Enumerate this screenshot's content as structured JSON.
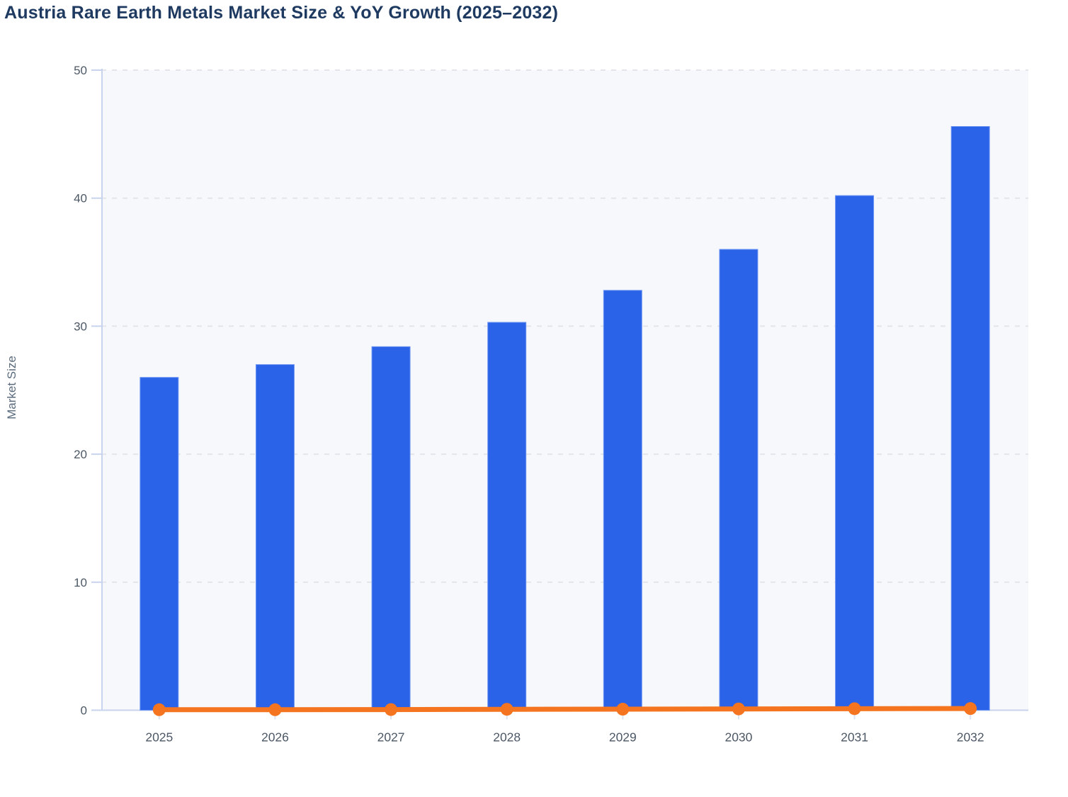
{
  "header": {
    "title": "Austria Rare Earth Metals Market Size & YoY Growth (2025–2032)"
  },
  "colors": {
    "title": "#1f3a60",
    "bar_fill": "#2a63e8",
    "bar_border": "#6f96f3",
    "line": "#f5741f",
    "plot_background": "#f7f8fb",
    "gridline": "#e3e5eb",
    "axis_line": "#c8d3ee",
    "x_tick_mark": "#dce3f3",
    "tick_label": "#4d5866",
    "axis_title": "#5a6b7d"
  },
  "chart_data": {
    "type": "bar",
    "title": "Austria Rare Earth Metals Market Size & YoY Growth (2025–2032)",
    "categories": [
      "2025",
      "2026",
      "2027",
      "2028",
      "2029",
      "2030",
      "2031",
      "2032"
    ],
    "series": [
      {
        "name": "Market Size",
        "type": "bar",
        "color": "#2a63e8",
        "values": [
          26.0,
          27.0,
          28.4,
          30.3,
          32.8,
          36.0,
          40.2,
          45.6
        ]
      },
      {
        "name": "YoY Growth",
        "type": "line",
        "color": "#f5741f",
        "values": [
          0.04,
          0.04,
          0.05,
          0.07,
          0.08,
          0.1,
          0.12,
          0.13
        ],
        "values_estimated": true
      }
    ],
    "xlabel": "",
    "ylabel": "Market Size",
    "ylim": [
      0,
      50
    ],
    "yticks": [
      0,
      10,
      20,
      30,
      40,
      50
    ],
    "grid": "horizontal-dashed",
    "legend_position": "none"
  }
}
